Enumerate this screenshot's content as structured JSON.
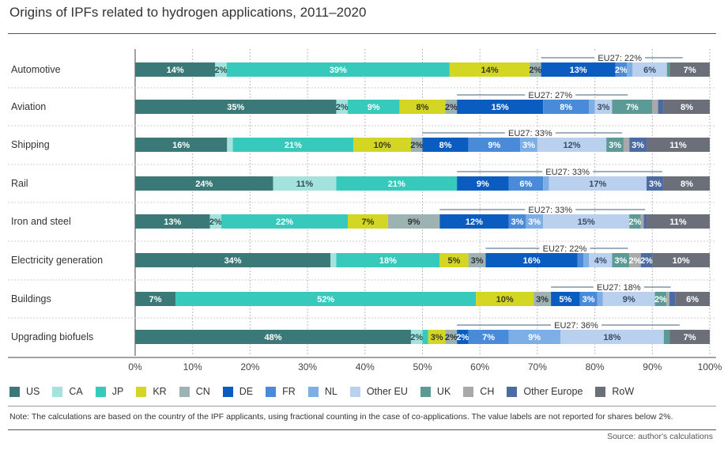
{
  "chart_data": {
    "type": "bar",
    "orientation": "horizontal-stacked",
    "title": "Origins of IPFs related to hydrogen applications, 2011–2020",
    "xlabel": "",
    "ylabel": "",
    "xlim": [
      0,
      100
    ],
    "x_ticks": [
      "0%",
      "10%",
      "20%",
      "30%",
      "40%",
      "50%",
      "60%",
      "70%",
      "80%",
      "90%",
      "100%"
    ],
    "grid": true,
    "legend_position": "bottom",
    "categories": [
      "Automotive",
      "Aviation",
      "Shipping",
      "Rail",
      "Iron and steel",
      "Electricity generation",
      "Buildings",
      "Upgrading biofuels"
    ],
    "series": [
      {
        "name": "US",
        "color": "#3b7979",
        "label_color": "#ffffff",
        "values": [
          14,
          35,
          16,
          24,
          13,
          34,
          7,
          48
        ]
      },
      {
        "name": "CA",
        "color": "#a3e2dd",
        "label_color": "#2f4f4f",
        "values": [
          2,
          2,
          1,
          11,
          2,
          1,
          0,
          2
        ]
      },
      {
        "name": "JP",
        "color": "#36c9bc",
        "label_color": "#ffffff",
        "values": [
          39,
          9,
          21,
          21,
          22,
          18,
          52,
          1
        ]
      },
      {
        "name": "KR",
        "color": "#d3d724",
        "label_color": "#3a3a20",
        "values": [
          14,
          8,
          10,
          0,
          7,
          5,
          10,
          3
        ]
      },
      {
        "name": "CN",
        "color": "#9db2b2",
        "label_color": "#333333",
        "values": [
          2,
          2,
          2,
          0,
          9,
          3,
          3,
          2
        ]
      },
      {
        "name": "DE",
        "color": "#0b5cc1",
        "label_color": "#ffffff",
        "values": [
          13,
          15,
          8,
          9,
          12,
          16,
          5,
          2
        ]
      },
      {
        "name": "FR",
        "color": "#4a8bd9",
        "label_color": "#ffffff",
        "values": [
          2,
          8,
          9,
          6,
          3,
          1,
          3,
          7
        ]
      },
      {
        "name": "NL",
        "color": "#7eaee6",
        "label_color": "#ffffff",
        "values": [
          1,
          1,
          3,
          1,
          3,
          1,
          1,
          9
        ]
      },
      {
        "name": "Other EU",
        "color": "#b9d1ef",
        "label_color": "#3a4a60",
        "values": [
          6,
          3,
          12,
          17,
          15,
          4,
          9,
          18
        ]
      },
      {
        "name": "UK",
        "color": "#5c9b95",
        "label_color": "#ffffff",
        "values": [
          0.5,
          7,
          3,
          0,
          2,
          3,
          2,
          1
        ]
      },
      {
        "name": "CH",
        "color": "#a9a9a9",
        "label_color": "#ffffff",
        "values": [
          0,
          1,
          1,
          0,
          0.5,
          2,
          0.5,
          0
        ]
      },
      {
        "name": "Other Europe",
        "color": "#4b6ba2",
        "label_color": "#ffffff",
        "values": [
          0,
          1,
          3,
          3,
          0.5,
          2,
          1,
          0
        ]
      },
      {
        "name": "RoW",
        "color": "#6b6f79",
        "label_color": "#ffffff",
        "values": [
          7,
          8,
          11,
          8,
          11,
          10,
          6,
          7
        ]
      }
    ],
    "annotations": [
      "EU27: 22%",
      "EU27: 27%",
      "EU27: 33%",
      "EU27: 33%",
      "EU27: 33%",
      "EU27: 22%",
      "EU27: 18%",
      "EU27: 36%"
    ]
  },
  "note": "Note: The calculations are based on the country of the IPF applicants, using fractional counting in the case of co-applications. The value labels are not reported for shares below 2%.",
  "source": "Source: author's calculations"
}
